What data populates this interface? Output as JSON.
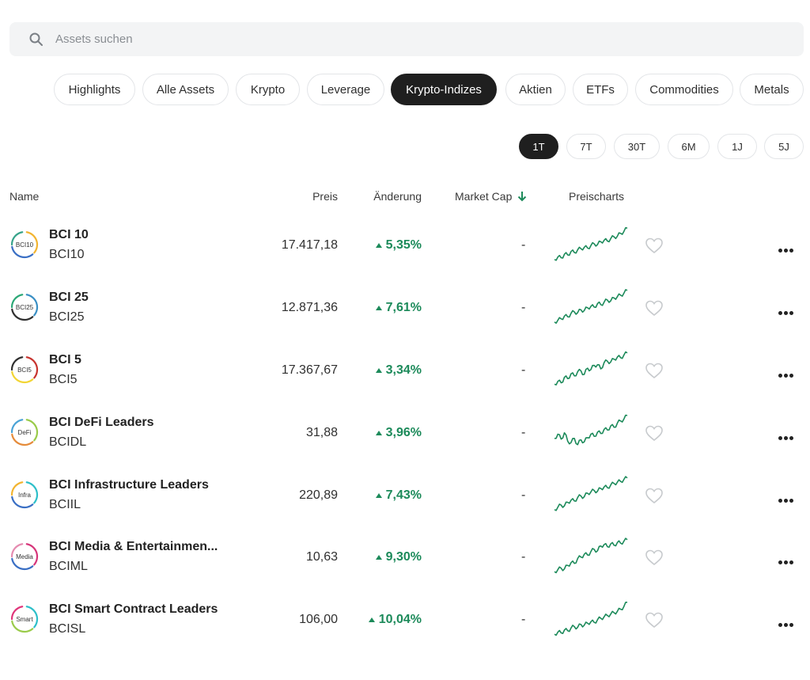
{
  "search": {
    "placeholder": "Assets suchen"
  },
  "categories": [
    "Highlights",
    "Alle Assets",
    "Krypto",
    "Leverage",
    "Krypto-Indizes",
    "Aktien",
    "ETFs",
    "Commodities",
    "Metals"
  ],
  "active_category": "Krypto-Indizes",
  "periods": [
    "1T",
    "7T",
    "30T",
    "6M",
    "1J",
    "5J"
  ],
  "active_period": "1T",
  "columns": {
    "name": "Name",
    "price": "Preis",
    "change": "Änderung",
    "market_cap": "Market Cap",
    "chart": "Preischarts"
  },
  "rows": [
    {
      "name": "BCI 10",
      "symbol": "BCI10",
      "logo_text": "BCI10",
      "price": "17.417,18",
      "change": "5,35%",
      "market_cap": "-",
      "ring_colors": [
        "#f2b430",
        "#3a6fc4",
        "#36a38a"
      ],
      "spark": [
        0.05,
        0.12,
        0.1,
        0.2,
        0.18,
        0.28,
        0.25,
        0.33,
        0.36,
        0.4,
        0.38,
        0.45,
        0.5,
        0.48,
        0.56,
        0.6,
        0.58,
        0.65,
        0.7,
        0.72,
        0.8,
        0.86,
        0.95
      ]
    },
    {
      "name": "BCI 25",
      "symbol": "BCI25",
      "logo_text": "BCI25",
      "price": "12.871,36",
      "change": "7,61%",
      "market_cap": "-",
      "ring_colors": [
        "#3a8fc4",
        "#2f2f2f",
        "#2ba876"
      ],
      "spark": [
        0.05,
        0.1,
        0.14,
        0.22,
        0.2,
        0.3,
        0.34,
        0.32,
        0.4,
        0.38,
        0.46,
        0.5,
        0.48,
        0.58,
        0.55,
        0.62,
        0.68,
        0.66,
        0.74,
        0.78,
        0.82,
        0.88,
        0.96
      ]
    },
    {
      "name": "BCI 5",
      "symbol": "BCI5",
      "logo_text": "BCI5",
      "price": "17.367,67",
      "change": "3,34%",
      "market_cap": "-",
      "ring_colors": [
        "#c8342f",
        "#f2d535",
        "#2f2f2f"
      ],
      "spark": [
        0.06,
        0.14,
        0.1,
        0.26,
        0.22,
        0.36,
        0.3,
        0.42,
        0.44,
        0.34,
        0.52,
        0.48,
        0.6,
        0.62,
        0.5,
        0.68,
        0.72,
        0.7,
        0.78,
        0.84,
        0.82,
        0.9,
        0.96
      ]
    },
    {
      "name": "BCI DeFi Leaders",
      "symbol": "BCIDL",
      "logo_text": "DeFi",
      "price": "31,88",
      "change": "3,96%",
      "market_cap": "-",
      "ring_colors": [
        "#9acb4a",
        "#e58b3a",
        "#4aa3d6"
      ],
      "spark": [
        0.3,
        0.42,
        0.28,
        0.46,
        0.22,
        0.18,
        0.3,
        0.12,
        0.26,
        0.2,
        0.32,
        0.42,
        0.36,
        0.48,
        0.44,
        0.56,
        0.54,
        0.66,
        0.62,
        0.74,
        0.8,
        0.86,
        0.96
      ]
    },
    {
      "name": "BCI Infrastructure Leaders",
      "symbol": "BCIIL",
      "logo_text": "Infra",
      "price": "220,89",
      "change": "7,43%",
      "market_cap": "-",
      "ring_colors": [
        "#2dbfc9",
        "#3a6fc4",
        "#f2b430"
      ],
      "spark": [
        0.05,
        0.12,
        0.18,
        0.16,
        0.26,
        0.32,
        0.3,
        0.4,
        0.44,
        0.42,
        0.52,
        0.56,
        0.6,
        0.58,
        0.66,
        0.7,
        0.68,
        0.76,
        0.8,
        0.84,
        0.86,
        0.92,
        0.96
      ]
    },
    {
      "name": "BCI Media & Entertainmen...",
      "symbol": "BCIML",
      "logo_text": "Media",
      "price": "10,63",
      "change": "9,30%",
      "market_cap": "-",
      "ring_colors": [
        "#d6357a",
        "#3a6fc4",
        "#e58bb0"
      ],
      "spark": [
        0.04,
        0.1,
        0.14,
        0.12,
        0.22,
        0.3,
        0.28,
        0.42,
        0.46,
        0.54,
        0.52,
        0.62,
        0.68,
        0.64,
        0.78,
        0.82,
        0.76,
        0.84,
        0.8,
        0.88,
        0.86,
        0.92,
        0.96
      ]
    },
    {
      "name": "BCI Smart Contract Leaders",
      "symbol": "BCISL",
      "logo_text": "Smart",
      "price": "106,00",
      "change": "10,04%",
      "market_cap": "-",
      "ring_colors": [
        "#2dbfc9",
        "#9acb4a",
        "#e0357a"
      ],
      "spark": [
        0.04,
        0.1,
        0.08,
        0.16,
        0.14,
        0.22,
        0.26,
        0.24,
        0.32,
        0.3,
        0.36,
        0.4,
        0.38,
        0.46,
        0.5,
        0.54,
        0.58,
        0.62,
        0.66,
        0.7,
        0.76,
        0.84,
        0.96
      ]
    }
  ],
  "colors": {
    "accent_green": "#1c8a5a",
    "active_chip": "#1f1f1f"
  }
}
